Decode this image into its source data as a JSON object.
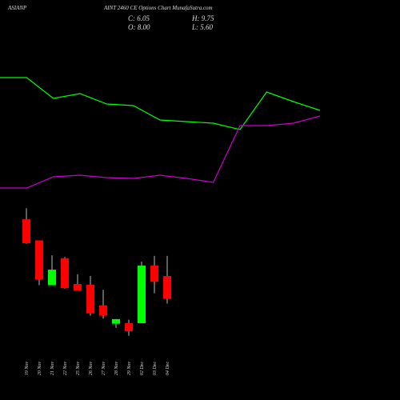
{
  "chart_data": [
    {
      "type": "line",
      "x": [
        0,
        1,
        2,
        3,
        4,
        5,
        6,
        7,
        8,
        9,
        10,
        11,
        12
      ],
      "xlim": [
        0,
        12
      ],
      "ylim": [
        0,
        100
      ],
      "series": [
        {
          "color": "#00ff00",
          "values": [
            81.5,
            81.5,
            68.5,
            71.5,
            65,
            64,
            55,
            54,
            53,
            49,
            72.5,
            66.5,
            61
          ]
        },
        {
          "color": "#cc00cc",
          "values": [
            12.5,
            12.5,
            19.5,
            20.5,
            19,
            18.5,
            20.5,
            18.5,
            16,
            51.5,
            51.5,
            53,
            57.5
          ]
        }
      ]
    },
    {
      "type": "candlestick",
      "symbol": "ASIANP",
      "title": "AINT 2460  CE Options  Chart MunafaSutra.com",
      "summary": [
        {
          "value": 6.05,
          "label": "C: 6.05"
        },
        {
          "value": 9.75,
          "label": "H: 9.75"
        },
        {
          "value": 8.0,
          "label": "O: 8.00"
        },
        {
          "value": 5.6,
          "label": "L: 5.60"
        }
      ],
      "categories": [
        "19 Nov",
        "20 Nov",
        "21 Nov",
        "22 Nov",
        "25 Nov",
        "26 Nov",
        "27 Nov",
        "28 Nov",
        "29 Nov",
        "02 Dec",
        "03 Dec",
        "04 Dec"
      ],
      "open": [
        12.93,
        11.1,
        7.2,
        9.55,
        7.3,
        7.25,
        5.45,
        3.85,
        3.9,
        3.9,
        8.9,
        8.0
      ],
      "high": [
        13.9,
        11.1,
        9.8,
        9.65,
        8.15,
        8.0,
        6.8,
        4.25,
        4.2,
        9.25,
        9.75,
        9.75
      ],
      "low": [
        10.8,
        7.2,
        7.2,
        6.9,
        6.75,
        4.55,
        4.3,
        3.5,
        2.8,
        3.9,
        6.5,
        5.6
      ],
      "close": [
        10.85,
        7.7,
        8.55,
        6.95,
        6.75,
        4.75,
        4.55,
        4.25,
        3.2,
        8.9,
        7.5,
        6.05
      ],
      "ylim": [
        0,
        16
      ],
      "up_color": "#00ff00",
      "down_color": "#ff0000"
    }
  ]
}
